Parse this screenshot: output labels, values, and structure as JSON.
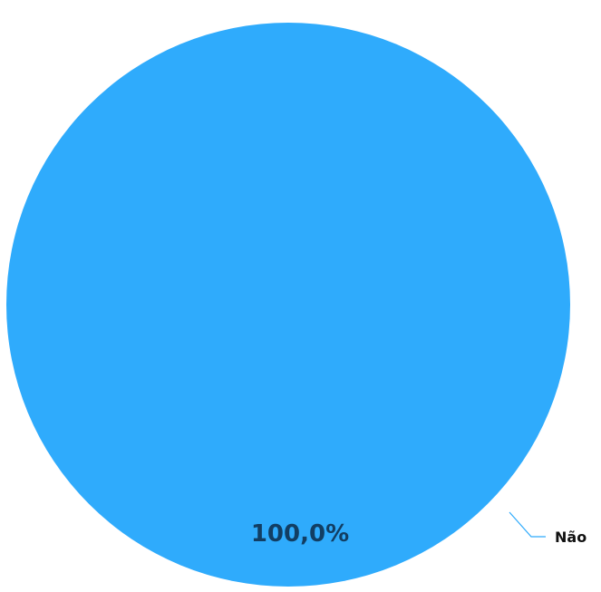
{
  "chart_data": {
    "type": "pie",
    "categories": [
      "Não"
    ],
    "values": [
      100.0
    ],
    "data_labels": [
      "100,0%"
    ],
    "colors": [
      "#2fabfc"
    ],
    "label_color": "#123e63",
    "leader_line_color": "#2fabfc",
    "legend": "none"
  }
}
